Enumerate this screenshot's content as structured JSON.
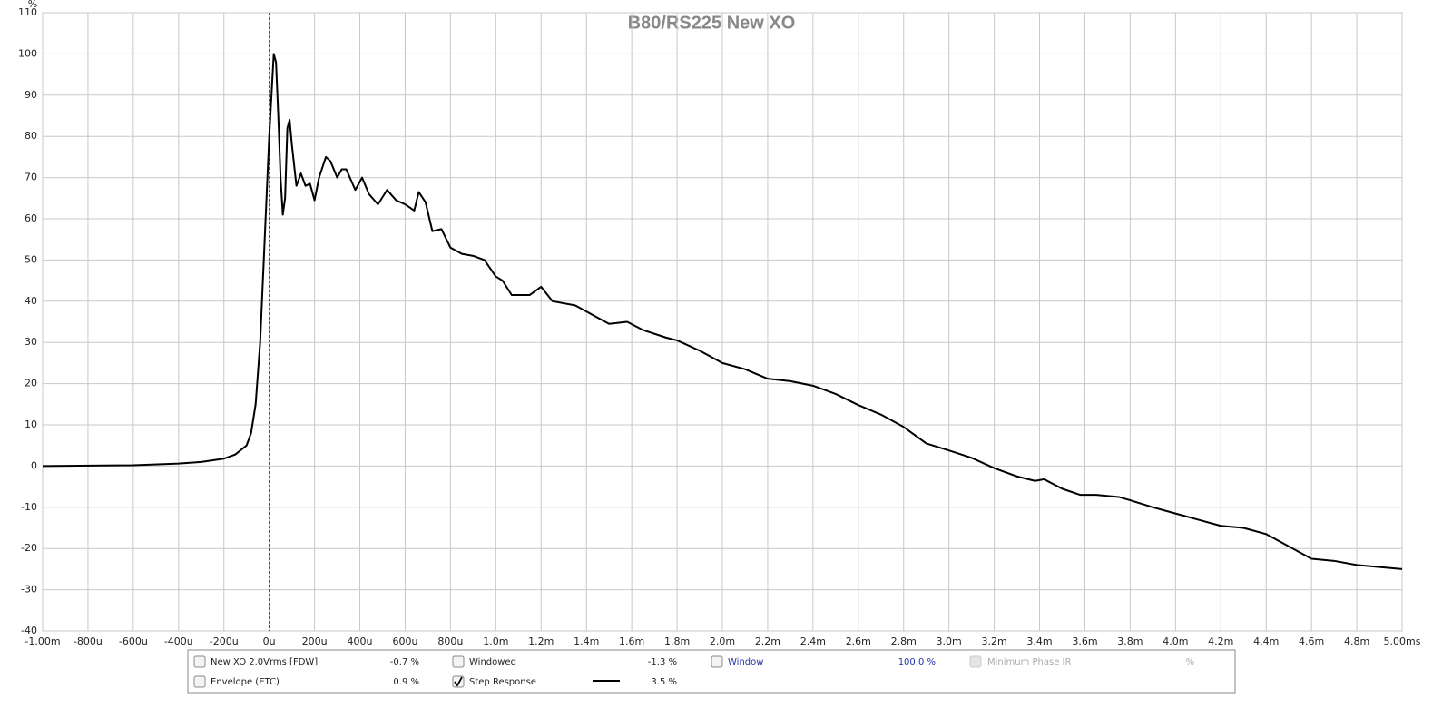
{
  "chart_data": {
    "type": "line",
    "title": "B80/RS225 New XO",
    "y_label": "%",
    "xlim": [
      -1.0,
      5.0
    ],
    "xticks": [
      {
        "value": -1.0,
        "label": "-1.00m"
      },
      {
        "value": -0.8,
        "label": "-800u"
      },
      {
        "value": -0.6,
        "label": "-600u"
      },
      {
        "value": -0.4,
        "label": "-400u"
      },
      {
        "value": -0.2,
        "label": "-200u"
      },
      {
        "value": 0,
        "label": "0u"
      },
      {
        "value": 0.2,
        "label": "200u"
      },
      {
        "value": 0.4,
        "label": "400u"
      },
      {
        "value": 0.6,
        "label": "600u"
      },
      {
        "value": 0.8,
        "label": "800u"
      },
      {
        "value": 1.0,
        "label": "1.0m"
      },
      {
        "value": 1.2,
        "label": "1.2m"
      },
      {
        "value": 1.4,
        "label": "1.4m"
      },
      {
        "value": 1.6,
        "label": "1.6m"
      },
      {
        "value": 1.8,
        "label": "1.8m"
      },
      {
        "value": 2.0,
        "label": "2.0m"
      },
      {
        "value": 2.2,
        "label": "2.2m"
      },
      {
        "value": 2.4,
        "label": "2.4m"
      },
      {
        "value": 2.6,
        "label": "2.6m"
      },
      {
        "value": 2.8,
        "label": "2.8m"
      },
      {
        "value": 3.0,
        "label": "3.0m"
      },
      {
        "value": 3.2,
        "label": "3.2m"
      },
      {
        "value": 3.4,
        "label": "3.4m"
      },
      {
        "value": 3.6,
        "label": "3.6m"
      },
      {
        "value": 3.8,
        "label": "3.8m"
      },
      {
        "value": 4.0,
        "label": "4.0m"
      },
      {
        "value": 4.2,
        "label": "4.2m"
      },
      {
        "value": 4.4,
        "label": "4.4m"
      },
      {
        "value": 4.6,
        "label": "4.6m"
      },
      {
        "value": 4.8,
        "label": "4.8m"
      },
      {
        "value": 5.0,
        "label": "5.00ms"
      }
    ],
    "ylim": [
      -40,
      110
    ],
    "yticks": [
      -40,
      -30,
      -20,
      -10,
      0,
      10,
      20,
      30,
      40,
      50,
      60,
      70,
      80,
      90,
      100,
      110
    ],
    "grid": true,
    "x": [
      -1.0,
      -0.6,
      -0.4,
      -0.3,
      -0.2,
      -0.15,
      -0.1,
      -0.08,
      -0.06,
      -0.04,
      -0.02,
      0.0,
      0.02,
      0.03,
      0.04,
      0.05,
      0.06,
      0.07,
      0.08,
      0.09,
      0.1,
      0.12,
      0.14,
      0.16,
      0.18,
      0.2,
      0.22,
      0.25,
      0.27,
      0.3,
      0.32,
      0.34,
      0.38,
      0.41,
      0.44,
      0.48,
      0.52,
      0.56,
      0.6,
      0.64,
      0.66,
      0.69,
      0.72,
      0.76,
      0.8,
      0.85,
      0.9,
      0.95,
      1.0,
      1.03,
      1.07,
      1.15,
      1.2,
      1.25,
      1.35,
      1.45,
      1.5,
      1.58,
      1.65,
      1.75,
      1.8,
      1.9,
      2.0,
      2.1,
      2.2,
      2.3,
      2.4,
      2.5,
      2.6,
      2.7,
      2.8,
      2.9,
      3.0,
      3.1,
      3.2,
      3.3,
      3.38,
      3.42,
      3.5,
      3.58,
      3.65,
      3.75,
      3.8,
      3.9,
      4.0,
      4.1,
      4.2,
      4.3,
      4.4,
      4.5,
      4.6,
      4.7,
      4.8,
      4.9,
      5.0
    ],
    "series": [
      {
        "color": "#000000",
        "values": [
          0,
          0.2,
          0.6,
          1.0,
          1.8,
          2.8,
          5,
          8,
          15,
          30,
          55,
          80,
          100,
          98,
          85,
          70,
          61,
          65,
          82,
          84,
          78,
          68,
          71,
          68,
          68.5,
          64.5,
          70,
          75,
          74,
          70,
          72,
          72,
          67,
          70,
          66,
          63.5,
          67,
          64.5,
          63.5,
          62,
          66.5,
          64,
          57,
          57.5,
          53,
          51.5,
          51,
          50,
          46,
          45,
          41.5,
          41.5,
          43.5,
          40,
          39,
          36,
          34.5,
          35,
          33,
          31.2,
          30.5,
          28,
          25,
          23.5,
          21.2,
          20.6,
          19.5,
          17.5,
          14.8,
          12.5,
          9.5,
          5.5,
          3.8,
          2,
          -0.5,
          -2.5,
          -3.6,
          -3.2,
          -5.5,
          -7,
          -7,
          -7.5,
          -8.3,
          -10,
          -11.5,
          -13,
          -14.5,
          -15,
          -16.5,
          -19.5,
          -22.5,
          -23,
          -24,
          -24.5,
          -25
        ]
      }
    ]
  },
  "controls": [
    {
      "label": "New XO 2.0Vrms [FDW]",
      "value": "-0.7 %",
      "checked": false
    },
    {
      "label": "Windowed",
      "value": "-1.3 %",
      "checked": false
    },
    {
      "label": "Window",
      "value": "100.0 %",
      "checked": false
    },
    {
      "label": "Minimum Phase IR",
      "value": "%",
      "checked": false
    },
    {
      "label": "Envelope (ETC)",
      "value": "0.9 %",
      "checked": false
    },
    {
      "label": "Step Response",
      "value": "3.5 %",
      "checked": true
    }
  ]
}
